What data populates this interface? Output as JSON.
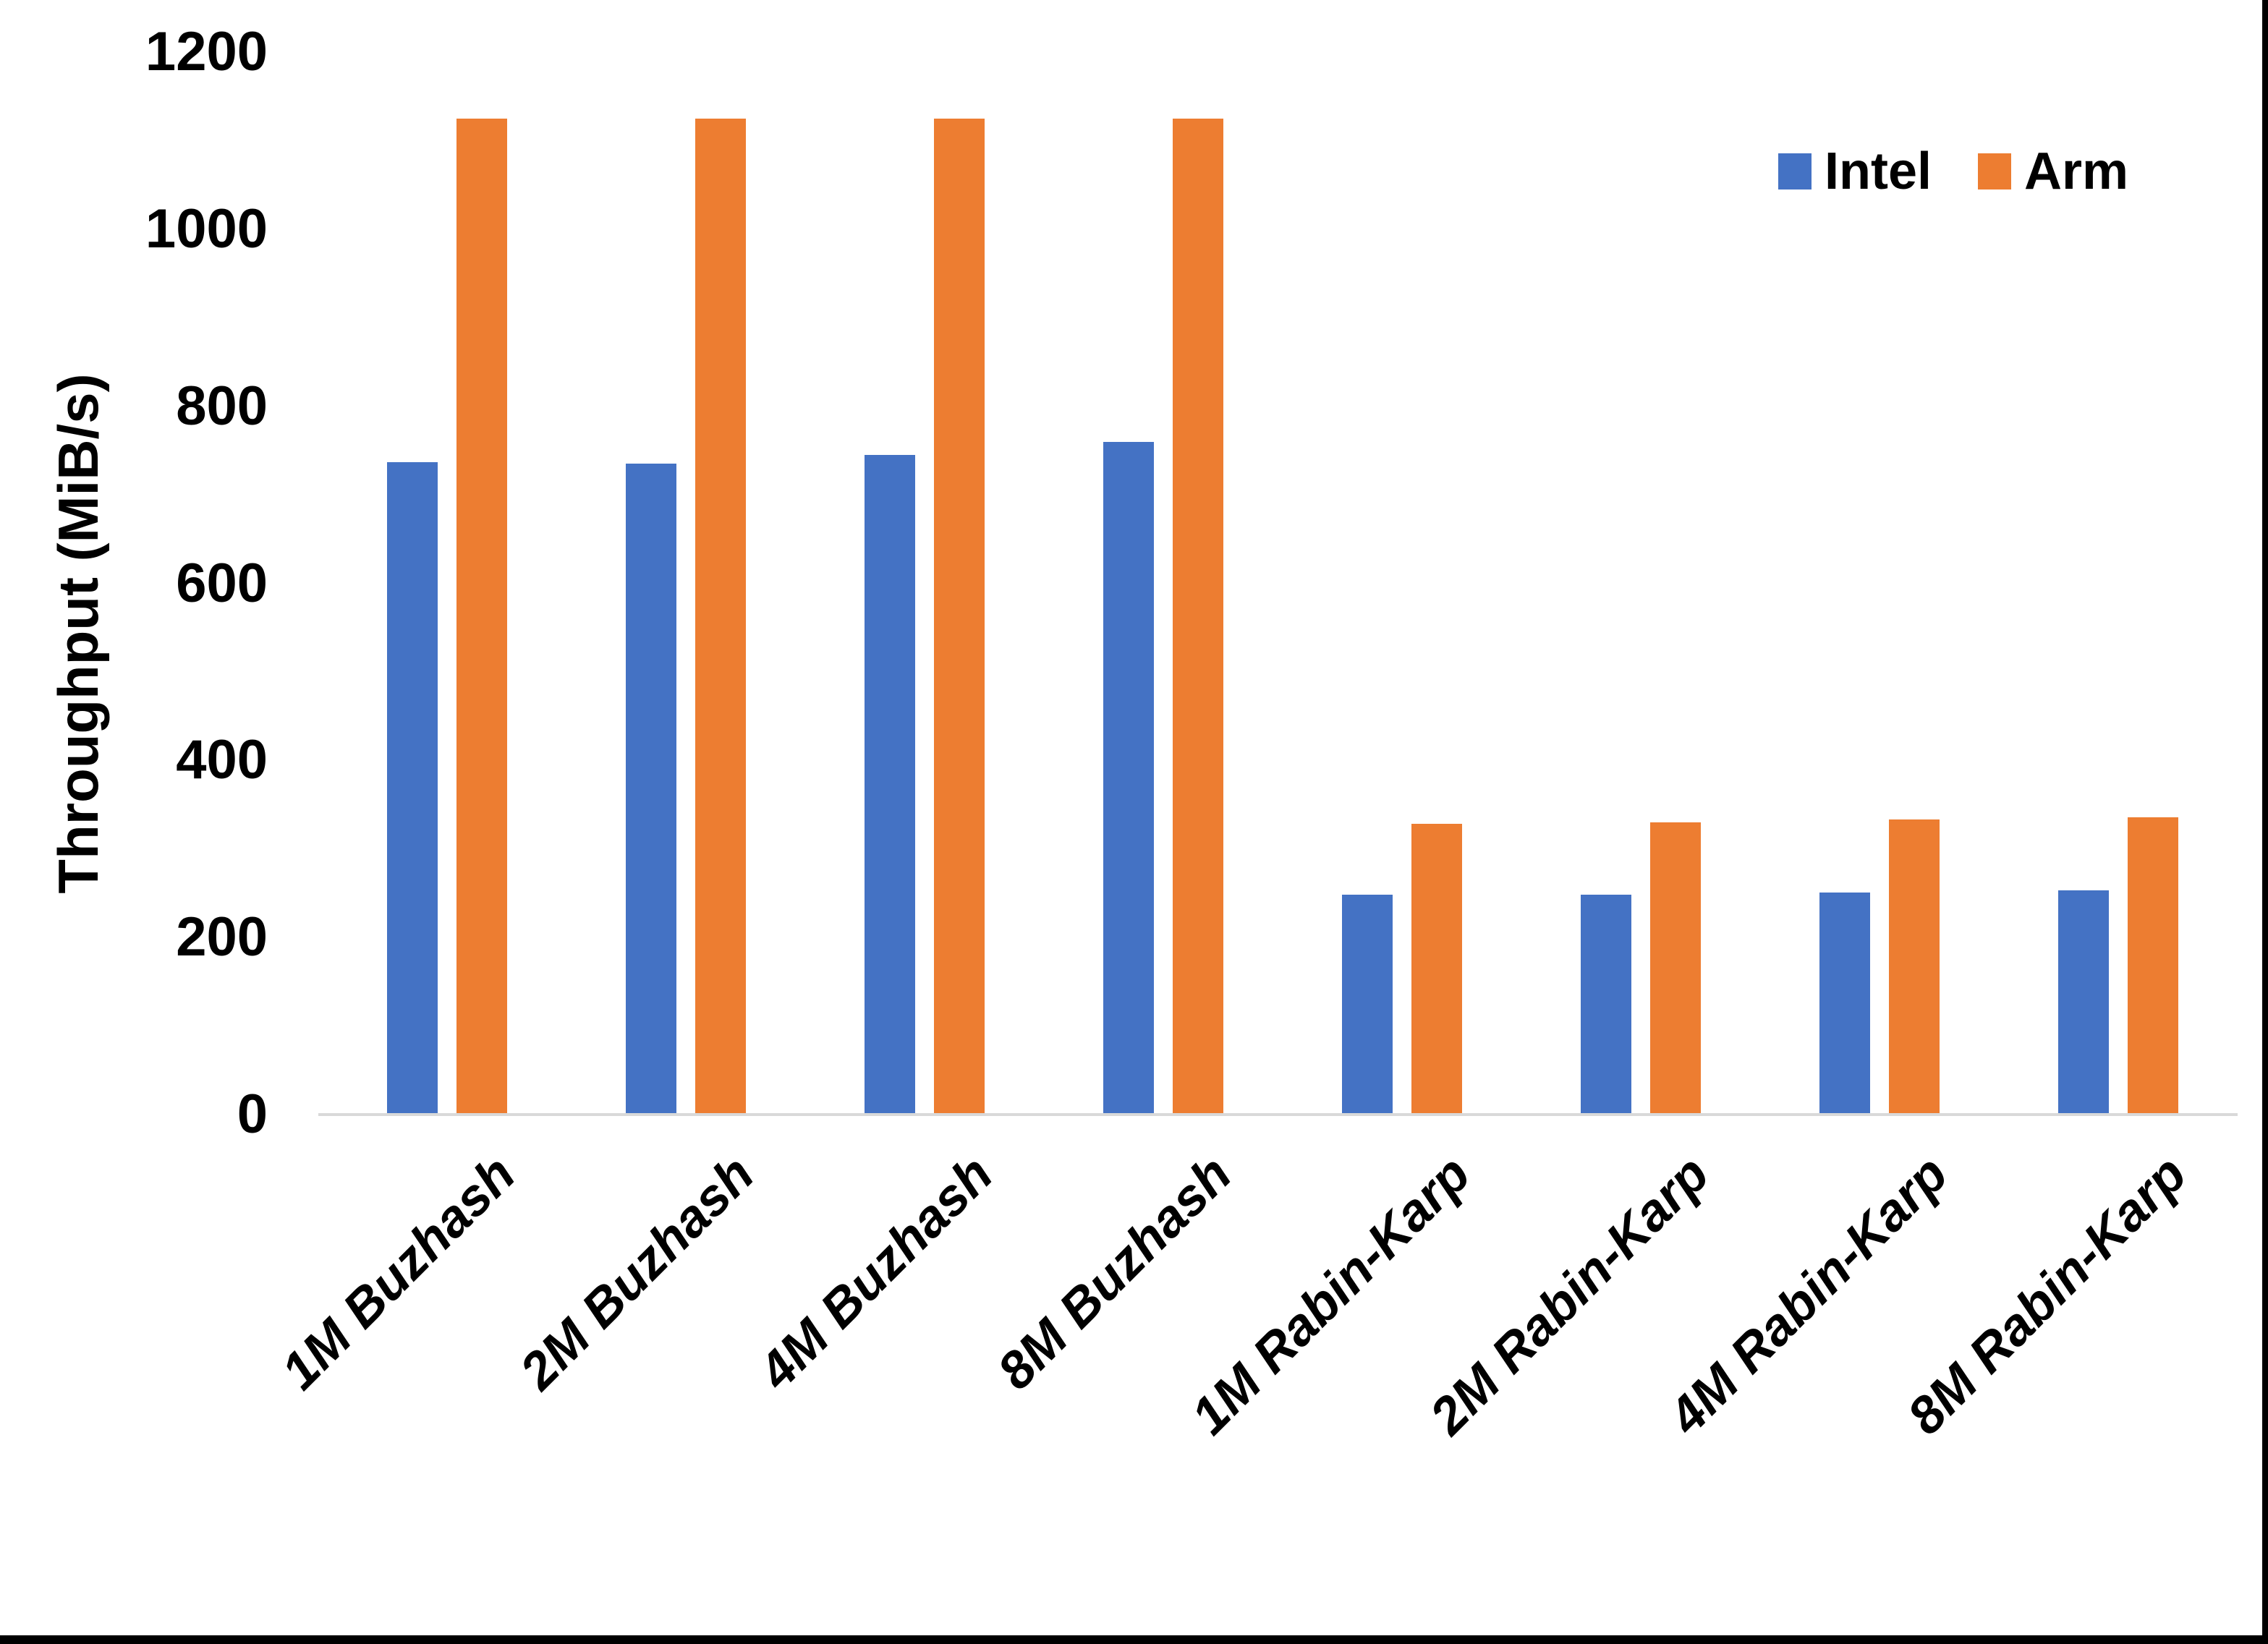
{
  "chart_data": {
    "type": "bar",
    "categories": [
      "1M Buzhash",
      "2M Buzhash",
      "4M Buzhash",
      "8M Buzhash",
      "1M Rabin-Karp",
      "2M Rabin-Karp",
      "4M Rabin-Karp",
      "8M Rabin-Karp"
    ],
    "series": [
      {
        "name": "Intel",
        "color": "#4472C4",
        "values": [
          737,
          735,
          745,
          760,
          248,
          248,
          251,
          253
        ]
      },
      {
        "name": "Arm",
        "color": "#ED7D31",
        "values": [
          1125,
          1125,
          1125,
          1125,
          328,
          330,
          333,
          336
        ]
      }
    ],
    "title": "",
    "xlabel": "",
    "ylabel": "Throughput (MiB/s)",
    "ylim": [
      0,
      1200
    ],
    "yticks": [
      0,
      200,
      400,
      600,
      800,
      1000,
      1200
    ],
    "grid": false,
    "legend_position": "top-right",
    "axis_line_color": "#D9D9D9",
    "page_border_color": "#000000"
  }
}
